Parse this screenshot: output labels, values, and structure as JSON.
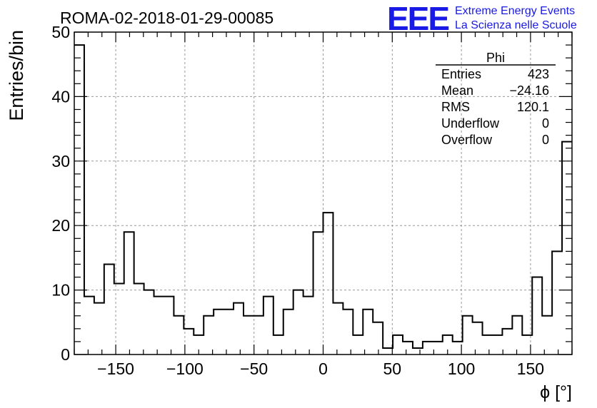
{
  "header": {
    "run_title": "ROMA-02-2018-01-29-00085",
    "logo_text": "EEE",
    "logo_line1": "Extreme Energy Events",
    "logo_line2": "La Scienza nelle Scuole",
    "logo_color": "#1a1ae6"
  },
  "stats_box": {
    "title": "Phi",
    "rows": [
      {
        "label": "Entries",
        "value": "423"
      },
      {
        "label": "Mean",
        "value": "−24.16"
      },
      {
        "label": "RMS",
        "value": "120.1"
      },
      {
        "label": "Underflow",
        "value": "0"
      },
      {
        "label": "Overflow",
        "value": "0"
      }
    ]
  },
  "chart_data": {
    "type": "histogram",
    "title": "ROMA-02-2018-01-29-00085",
    "xlabel": "ϕ [°]",
    "ylabel": "Entries/bin",
    "xlim": [
      -180,
      180
    ],
    "ylim": [
      0,
      50
    ],
    "bin_width": 7.2,
    "x_ticks": [
      -150,
      -100,
      -50,
      0,
      50,
      100,
      150
    ],
    "x_tick_labels": [
      "−150",
      "−100",
      "−50",
      "0",
      "50",
      "100",
      "150"
    ],
    "y_ticks": [
      0,
      10,
      20,
      30,
      40,
      50
    ],
    "y_tick_labels": [
      "0",
      "10",
      "20",
      "30",
      "40",
      "50"
    ],
    "grid": true,
    "line_color": "#000000",
    "values": [
      48,
      9,
      8,
      14,
      11,
      19,
      11,
      10,
      9,
      9,
      6,
      4,
      3,
      6,
      7,
      7,
      8,
      6,
      6,
      9,
      3,
      7,
      10,
      9,
      19,
      22,
      8,
      7,
      3,
      7,
      5,
      1,
      3,
      2,
      1,
      2,
      2,
      3,
      2,
      6,
      5,
      3,
      3,
      4,
      6,
      3,
      12,
      6,
      16,
      33
    ]
  }
}
